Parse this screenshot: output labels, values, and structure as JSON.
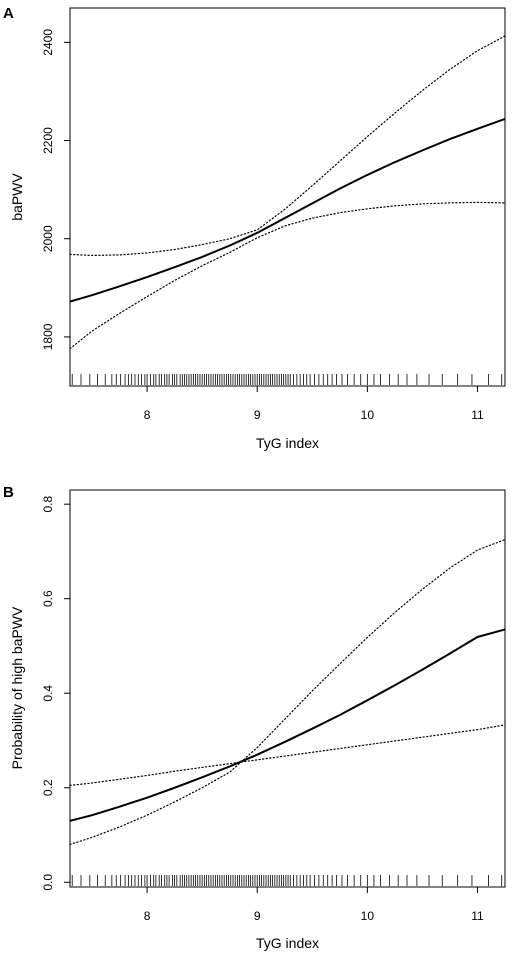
{
  "chart_data": [
    {
      "panel": "A",
      "type": "line",
      "xlabel": "TyG index",
      "ylabel": "baPWV",
      "xlim": [
        7.3,
        11.25
      ],
      "ylim": [
        1700,
        2470
      ],
      "xticks": [
        "8",
        "9",
        "10",
        "11"
      ],
      "yticks": [
        "1800",
        "2000",
        "2200",
        "2400"
      ],
      "grid": false,
      "legend": "none",
      "series": [
        {
          "style": "solid",
          "x": [
            7.3,
            7.5,
            7.75,
            8.0,
            8.25,
            8.5,
            8.75,
            9.0,
            9.25,
            9.5,
            9.75,
            10.0,
            10.25,
            10.5,
            10.75,
            11.0,
            11.25
          ],
          "y": [
            1872,
            1885,
            1903,
            1922,
            1942,
            1963,
            1986,
            2012,
            2042,
            2072,
            2102,
            2130,
            2156,
            2180,
            2203,
            2224,
            2244
          ]
        },
        {
          "style": "dotted",
          "x": [
            7.3,
            7.5,
            7.75,
            8.0,
            8.25,
            8.5,
            8.75,
            9.0,
            9.25,
            9.5,
            9.75,
            10.0,
            10.25,
            10.5,
            10.75,
            11.0,
            11.25
          ],
          "y": [
            1968,
            1966,
            1967,
            1971,
            1978,
            1988,
            2000,
            2018,
            2060,
            2108,
            2158,
            2208,
            2256,
            2302,
            2345,
            2383,
            2413
          ]
        },
        {
          "style": "dotted",
          "x": [
            7.3,
            7.5,
            7.75,
            8.0,
            8.25,
            8.5,
            8.75,
            9.0,
            9.25,
            9.5,
            9.75,
            10.0,
            10.25,
            10.5,
            10.75,
            11.0,
            11.25
          ],
          "y": [
            1776,
            1812,
            1848,
            1882,
            1915,
            1945,
            1972,
            2002,
            2026,
            2042,
            2053,
            2061,
            2067,
            2071,
            2073,
            2074,
            2073
          ]
        }
      ],
      "rug": [
        7.32,
        7.4,
        7.48,
        7.55,
        7.62,
        7.68,
        7.72,
        7.76,
        7.8,
        7.83,
        7.86,
        7.89,
        7.92,
        7.95,
        7.98,
        8.0,
        8.03,
        8.06,
        8.08,
        8.11,
        8.13,
        8.16,
        8.18,
        8.2,
        8.23,
        8.25,
        8.27,
        8.3,
        8.32,
        8.34,
        8.36,
        8.38,
        8.4,
        8.42,
        8.44,
        8.46,
        8.48,
        8.5,
        8.52,
        8.54,
        8.56,
        8.58,
        8.6,
        8.62,
        8.64,
        8.66,
        8.68,
        8.7,
        8.72,
        8.74,
        8.76,
        8.78,
        8.8,
        8.82,
        8.84,
        8.86,
        8.88,
        8.9,
        8.92,
        8.94,
        8.96,
        8.98,
        9.0,
        9.02,
        9.04,
        9.06,
        9.08,
        9.1,
        9.12,
        9.14,
        9.16,
        9.18,
        9.2,
        9.22,
        9.24,
        9.26,
        9.28,
        9.3,
        9.33,
        9.36,
        9.39,
        9.42,
        9.45,
        9.48,
        9.52,
        9.56,
        9.6,
        9.64,
        9.68,
        9.72,
        9.77,
        9.82,
        9.88,
        9.94,
        10.0,
        10.06,
        10.12,
        10.2,
        10.28,
        10.36,
        10.45,
        10.56,
        10.68,
        10.82,
        10.95,
        11.1,
        11.22
      ]
    },
    {
      "panel": "B",
      "type": "line",
      "xlabel": "TyG index",
      "ylabel": "Probability of high baPWV",
      "xlim": [
        7.3,
        11.25
      ],
      "ylim": [
        -0.01,
        0.83
      ],
      "xticks": [
        "8",
        "9",
        "10",
        "11"
      ],
      "yticks": [
        "0.0",
        "0.2",
        "0.4",
        "0.6",
        "0.8"
      ],
      "grid": false,
      "legend": "none",
      "series": [
        {
          "style": "solid",
          "x": [
            7.3,
            7.5,
            7.75,
            8.0,
            8.25,
            8.5,
            8.75,
            9.0,
            9.25,
            9.5,
            9.75,
            10.0,
            10.25,
            10.5,
            10.75,
            11.0,
            11.25
          ],
          "y": [
            0.13,
            0.142,
            0.16,
            0.179,
            0.2,
            0.222,
            0.245,
            0.27,
            0.297,
            0.325,
            0.354,
            0.385,
            0.417,
            0.45,
            0.484,
            0.519,
            0.535
          ]
        },
        {
          "style": "dotted",
          "x": [
            7.3,
            7.5,
            7.75,
            8.0,
            8.25,
            8.5,
            8.75,
            9.0,
            9.25,
            9.5,
            9.75,
            10.0,
            10.25,
            10.5,
            10.75,
            11.0,
            11.25
          ],
          "y": [
            0.08,
            0.095,
            0.117,
            0.142,
            0.17,
            0.2,
            0.233,
            0.285,
            0.345,
            0.405,
            0.462,
            0.518,
            0.571,
            0.62,
            0.665,
            0.703,
            0.725
          ]
        },
        {
          "style": "dotted",
          "x": [
            7.3,
            7.5,
            7.75,
            8.0,
            8.25,
            8.5,
            8.75,
            9.0,
            9.25,
            9.5,
            9.75,
            10.0,
            10.25,
            10.5,
            10.75,
            11.0,
            11.25
          ],
          "y": [
            0.205,
            0.21,
            0.218,
            0.226,
            0.235,
            0.243,
            0.251,
            0.259,
            0.267,
            0.275,
            0.283,
            0.291,
            0.299,
            0.307,
            0.315,
            0.323,
            0.333
          ]
        }
      ],
      "rug": [
        7.32,
        7.4,
        7.48,
        7.55,
        7.62,
        7.68,
        7.72,
        7.76,
        7.8,
        7.83,
        7.86,
        7.89,
        7.92,
        7.95,
        7.98,
        8.0,
        8.03,
        8.06,
        8.08,
        8.11,
        8.13,
        8.16,
        8.18,
        8.2,
        8.23,
        8.25,
        8.27,
        8.3,
        8.32,
        8.34,
        8.36,
        8.38,
        8.4,
        8.42,
        8.44,
        8.46,
        8.48,
        8.5,
        8.52,
        8.54,
        8.56,
        8.58,
        8.6,
        8.62,
        8.64,
        8.66,
        8.68,
        8.7,
        8.72,
        8.74,
        8.76,
        8.78,
        8.8,
        8.82,
        8.84,
        8.86,
        8.88,
        8.9,
        8.92,
        8.94,
        8.96,
        8.98,
        9.0,
        9.02,
        9.04,
        9.06,
        9.08,
        9.1,
        9.12,
        9.14,
        9.16,
        9.18,
        9.2,
        9.22,
        9.24,
        9.26,
        9.28,
        9.3,
        9.33,
        9.36,
        9.39,
        9.42,
        9.45,
        9.48,
        9.52,
        9.56,
        9.6,
        9.64,
        9.68,
        9.72,
        9.77,
        9.82,
        9.88,
        9.94,
        10.0,
        10.06,
        10.12,
        10.2,
        10.28,
        10.36,
        10.45,
        10.56,
        10.68,
        10.82,
        10.95,
        11.1,
        11.22
      ]
    }
  ]
}
